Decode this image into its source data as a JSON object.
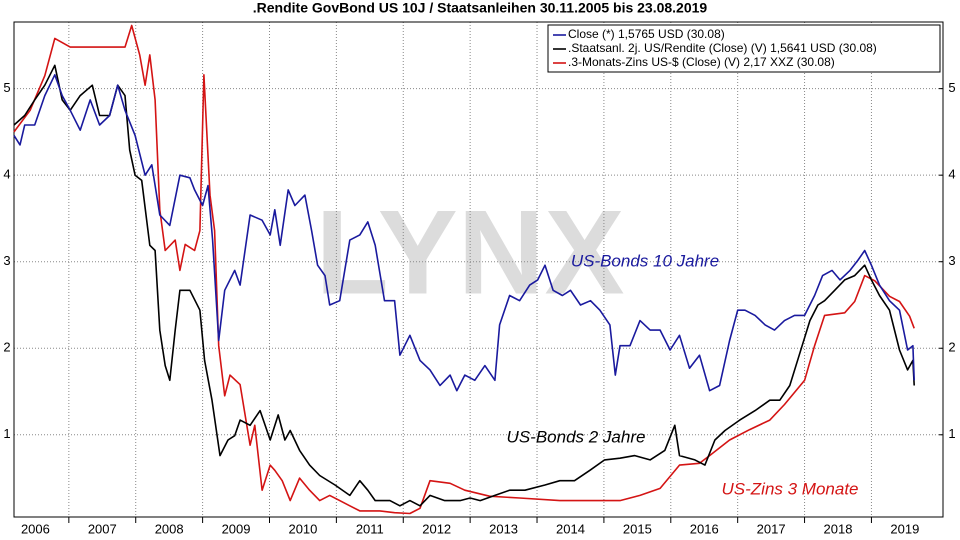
{
  "chart_data": {
    "type": "line",
    "title": ".Rendite GovBond US 10J / Staatsanleihen 30.11.2005 bis 23.08.2019",
    "watermark": "LYNX",
    "xlim": [
      2006.18,
      2020.07
    ],
    "ylim": [
      0.05,
      5.77
    ],
    "yticks": [
      1,
      2,
      3,
      4,
      5
    ],
    "y2lim": [
      0.05,
      5.77
    ],
    "y2ticks": [
      1,
      2,
      3,
      4,
      5
    ],
    "xticks": [
      {
        "value": 2006.5,
        "label": "2006"
      },
      {
        "value": 2007.5,
        "label": "2007"
      },
      {
        "value": 2008.5,
        "label": "2008"
      },
      {
        "value": 2009.5,
        "label": "2009"
      },
      {
        "value": 2010.5,
        "label": "2010"
      },
      {
        "value": 2011.5,
        "label": "2011"
      },
      {
        "value": 2012.5,
        "label": "2012"
      },
      {
        "value": 2013.5,
        "label": "2013"
      },
      {
        "value": 2014.5,
        "label": "2014"
      },
      {
        "value": 2015.5,
        "label": "2015"
      },
      {
        "value": 2016.5,
        "label": "2016"
      },
      {
        "value": 2017.5,
        "label": "2017"
      },
      {
        "value": 2018.5,
        "label": "2018"
      },
      {
        "value": 2019.5,
        "label": "2019"
      }
    ],
    "xgrid": [
      2007,
      2008,
      2009,
      2010,
      2011,
      2012,
      2013,
      2014,
      2015,
      2016,
      2017,
      2018,
      2019
    ],
    "grid": true,
    "legend": "top-right",
    "series": [
      {
        "name": "Close (*) 1,5765 USD (30.08)",
        "color": "#1a1a9e",
        "x": [
          2006.18,
          2006.27,
          2006.34,
          2006.49,
          2006.64,
          2006.79,
          2006.9,
          2007.02,
          2007.17,
          2007.32,
          2007.46,
          2007.61,
          2007.73,
          2007.84,
          2007.99,
          2008.14,
          2008.24,
          2008.36,
          2008.51,
          2008.66,
          2008.81,
          2008.88,
          2009.0,
          2009.08,
          2009.15,
          2009.24,
          2009.33,
          2009.48,
          2009.56,
          2009.71,
          2009.89,
          2010.01,
          2010.08,
          2010.16,
          2010.28,
          2010.38,
          2010.53,
          2010.63,
          2010.72,
          2010.83,
          2010.9,
          2011.05,
          2011.2,
          2011.35,
          2011.47,
          2011.58,
          2011.72,
          2011.87,
          2011.95,
          2012.1,
          2012.25,
          2012.4,
          2012.55,
          2012.7,
          2012.8,
          2012.92,
          2013.07,
          2013.22,
          2013.37,
          2013.44,
          2013.59,
          2013.74,
          2013.89,
          2014.01,
          2014.12,
          2014.24,
          2014.38,
          2014.5,
          2014.65,
          2014.8,
          2014.94,
          2015.09,
          2015.17,
          2015.24,
          2015.39,
          2015.54,
          2015.69,
          2015.84,
          2015.99,
          2016.13,
          2016.28,
          2016.43,
          2016.58,
          2016.73,
          2016.88,
          2017.0,
          2017.11,
          2017.26,
          2017.41,
          2017.55,
          2017.7,
          2017.85,
          2018.0,
          2018.15,
          2018.27,
          2018.41,
          2018.53,
          2018.68,
          2018.8,
          2018.9,
          2019.0,
          2019.12,
          2019.27,
          2019.42,
          2019.54,
          2019.62,
          2019.64
        ],
        "values": [
          4.46,
          4.35,
          4.58,
          4.58,
          4.92,
          5.16,
          4.92,
          4.75,
          4.52,
          4.87,
          4.58,
          4.69,
          5.04,
          4.75,
          4.46,
          4.0,
          4.12,
          3.54,
          3.42,
          4.0,
          3.97,
          3.83,
          3.65,
          3.88,
          3.25,
          2.09,
          2.67,
          2.9,
          2.73,
          3.54,
          3.48,
          3.31,
          3.6,
          3.19,
          3.83,
          3.65,
          3.77,
          3.36,
          2.96,
          2.84,
          2.5,
          2.55,
          3.25,
          3.31,
          3.46,
          3.19,
          2.55,
          2.55,
          1.92,
          2.15,
          1.86,
          1.75,
          1.57,
          1.69,
          1.51,
          1.69,
          1.63,
          1.8,
          1.63,
          2.27,
          2.61,
          2.55,
          2.73,
          2.79,
          2.96,
          2.67,
          2.61,
          2.67,
          2.5,
          2.55,
          2.44,
          2.27,
          1.69,
          2.03,
          2.03,
          2.32,
          2.21,
          2.21,
          1.98,
          2.15,
          1.77,
          1.92,
          1.51,
          1.57,
          2.09,
          2.44,
          2.44,
          2.38,
          2.27,
          2.21,
          2.32,
          2.38,
          2.38,
          2.61,
          2.84,
          2.9,
          2.79,
          2.9,
          3.02,
          3.13,
          2.96,
          2.73,
          2.55,
          2.44,
          1.98,
          2.03,
          1.63
        ]
      },
      {
        "name": ".Staatsanl. 2j. US/Rendite (Close) (V) 1,5641 USD (30.08)",
        "color": "#000000",
        "x": [
          2006.18,
          2006.34,
          2006.49,
          2006.64,
          2006.79,
          2006.9,
          2007.02,
          2007.17,
          2007.35,
          2007.46,
          2007.61,
          2007.73,
          2007.84,
          2007.91,
          2007.99,
          2008.09,
          2008.21,
          2008.29,
          2008.36,
          2008.44,
          2008.51,
          2008.59,
          2008.66,
          2008.81,
          2008.96,
          2009.03,
          2009.14,
          2009.26,
          2009.38,
          2009.48,
          2009.56,
          2009.71,
          2009.86,
          2010.01,
          2010.13,
          2010.23,
          2010.31,
          2010.45,
          2010.6,
          2010.75,
          2010.98,
          2011.2,
          2011.35,
          2011.47,
          2011.58,
          2011.8,
          2011.95,
          2012.1,
          2012.25,
          2012.4,
          2012.62,
          2012.85,
          2013.0,
          2013.15,
          2013.37,
          2013.59,
          2013.82,
          2014.12,
          2014.34,
          2014.56,
          2014.79,
          2015.01,
          2015.24,
          2015.46,
          2015.69,
          2015.91,
          2016.06,
          2016.13,
          2016.36,
          2016.51,
          2016.66,
          2016.81,
          2017.03,
          2017.26,
          2017.48,
          2017.63,
          2017.78,
          2017.92,
          2018.08,
          2018.2,
          2018.3,
          2018.45,
          2018.6,
          2018.75,
          2018.9,
          2019.0,
          2019.12,
          2019.27,
          2019.42,
          2019.54,
          2019.62,
          2019.64
        ],
        "values": [
          4.58,
          4.69,
          4.87,
          5.04,
          5.27,
          4.87,
          4.75,
          4.92,
          5.04,
          4.69,
          4.69,
          5.04,
          4.92,
          4.29,
          4.0,
          3.94,
          3.19,
          3.13,
          2.21,
          1.8,
          1.63,
          2.21,
          2.67,
          2.67,
          2.44,
          1.86,
          1.4,
          0.76,
          0.94,
          0.99,
          1.17,
          1.11,
          1.28,
          0.94,
          1.23,
          0.94,
          1.05,
          0.82,
          0.65,
          0.53,
          0.42,
          0.3,
          0.47,
          0.36,
          0.24,
          0.24,
          0.18,
          0.24,
          0.18,
          0.3,
          0.24,
          0.24,
          0.27,
          0.24,
          0.3,
          0.36,
          0.36,
          0.42,
          0.47,
          0.47,
          0.59,
          0.71,
          0.73,
          0.76,
          0.71,
          0.82,
          1.11,
          0.76,
          0.71,
          0.65,
          0.94,
          1.05,
          1.17,
          1.28,
          1.4,
          1.4,
          1.57,
          1.92,
          2.32,
          2.5,
          2.55,
          2.67,
          2.79,
          2.84,
          2.96,
          2.79,
          2.61,
          2.44,
          1.98,
          1.75,
          1.86,
          1.57
        ]
      },
      {
        "name": ".3-Monats-Zins US-$ (Close) (V) 2,17 XXZ (30.08)",
        "color": "#d41414",
        "x": [
          2006.18,
          2006.42,
          2006.64,
          2006.79,
          2007.02,
          2007.46,
          2007.84,
          2007.94,
          2008.06,
          2008.14,
          2008.21,
          2008.29,
          2008.36,
          2008.44,
          2008.59,
          2008.66,
          2008.74,
          2008.88,
          2008.96,
          2009.02,
          2009.11,
          2009.18,
          2009.24,
          2009.33,
          2009.41,
          2009.56,
          2009.71,
          2009.78,
          2009.89,
          2010.01,
          2010.08,
          2010.19,
          2010.31,
          2010.45,
          2010.6,
          2010.75,
          2010.9,
          2011.05,
          2011.2,
          2011.35,
          2011.65,
          2011.87,
          2012.1,
          2012.25,
          2012.4,
          2012.7,
          2012.92,
          2013.29,
          2013.74,
          2014.34,
          2014.94,
          2015.24,
          2015.54,
          2015.84,
          2016.13,
          2016.43,
          2016.58,
          2016.88,
          2017.18,
          2017.48,
          2017.7,
          2018.0,
          2018.15,
          2018.3,
          2018.6,
          2018.75,
          2018.9,
          2019.05,
          2019.27,
          2019.42,
          2019.57,
          2019.64
        ],
        "values": [
          4.5,
          4.75,
          5.15,
          5.58,
          5.48,
          5.48,
          5.48,
          5.73,
          5.39,
          5.04,
          5.39,
          4.87,
          3.6,
          3.13,
          3.25,
          2.9,
          3.2,
          3.13,
          3.36,
          5.16,
          3.77,
          3.36,
          2.03,
          1.45,
          1.69,
          1.58,
          0.88,
          1.11,
          0.36,
          0.65,
          0.59,
          0.47,
          0.24,
          0.5,
          0.36,
          0.24,
          0.3,
          0.24,
          0.18,
          0.12,
          0.12,
          0.1,
          0.09,
          0.15,
          0.47,
          0.44,
          0.36,
          0.29,
          0.27,
          0.24,
          0.24,
          0.24,
          0.3,
          0.38,
          0.65,
          0.67,
          0.76,
          0.94,
          1.06,
          1.17,
          1.35,
          1.63,
          2.03,
          2.38,
          2.41,
          2.54,
          2.84,
          2.78,
          2.6,
          2.54,
          2.37,
          2.23
        ]
      }
    ],
    "annotations": [
      {
        "text": "US-Bonds 10 Jahre",
        "color": "#1a1a9e"
      },
      {
        "text": "US-Bonds 2 Jahre",
        "color": "#000000"
      },
      {
        "text": "US-Zins 3 Monate",
        "color": "#d41414"
      }
    ]
  }
}
